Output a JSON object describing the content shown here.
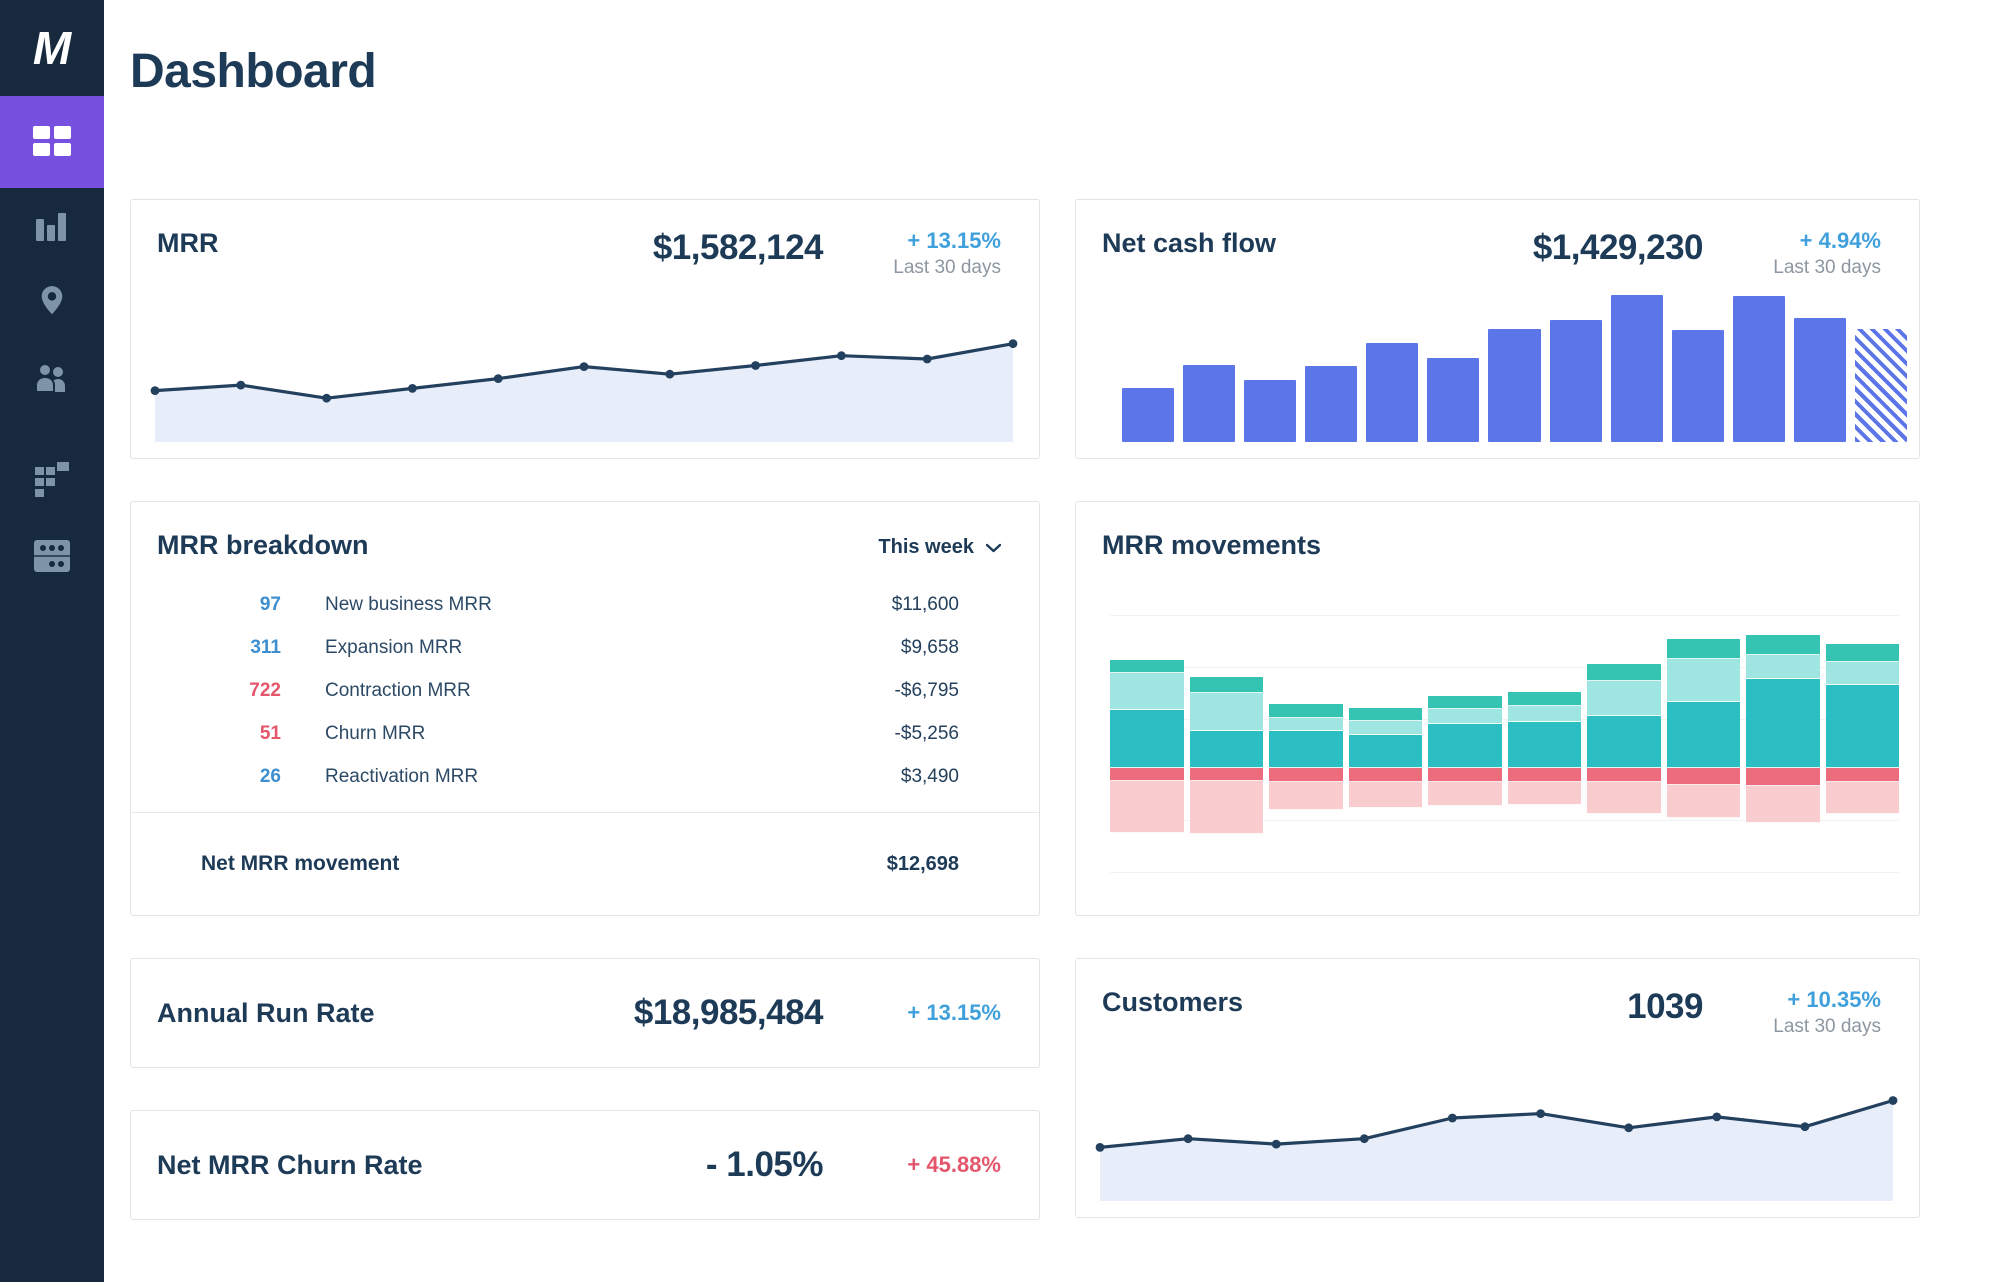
{
  "page": {
    "title": "Dashboard"
  },
  "sidebar": {
    "logo_text": "M",
    "items": [
      {
        "name": "dashboard",
        "icon": "grid-icon",
        "active": true
      },
      {
        "name": "charts",
        "icon": "bar-chart-icon",
        "active": false
      },
      {
        "name": "geo",
        "icon": "map-pin-icon",
        "active": false
      },
      {
        "name": "customers",
        "icon": "users-icon",
        "active": false
      },
      {
        "name": "segments",
        "icon": "blocks-icon",
        "active": false
      },
      {
        "name": "data",
        "icon": "data-table-icon",
        "active": false
      }
    ]
  },
  "cards": {
    "mrr": {
      "title": "MRR",
      "value": "$1,582,124",
      "delta": "+ 13.15%",
      "period": "Last 30 days"
    },
    "net_cash_flow": {
      "title": "Net cash flow",
      "value": "$1,429,230",
      "delta": "+ 4.94%",
      "period": "Last 30 days"
    },
    "mrr_breakdown": {
      "title": "MRR breakdown",
      "range_selector": "This week",
      "rows": [
        {
          "count": "97",
          "tone": "blue",
          "label": "New business MRR",
          "value": "$11,600"
        },
        {
          "count": "311",
          "tone": "blue",
          "label": "Expansion MRR",
          "value": "$9,658"
        },
        {
          "count": "722",
          "tone": "red",
          "label": "Contraction MRR",
          "value": "-$6,795"
        },
        {
          "count": "51",
          "tone": "red",
          "label": "Churn MRR",
          "value": "-$5,256"
        },
        {
          "count": "26",
          "tone": "blue",
          "label": "Reactivation MRR",
          "value": "$3,490"
        }
      ],
      "footer": {
        "label": "Net MRR movement",
        "value": "$12,698"
      }
    },
    "mrr_movements": {
      "title": "MRR movements"
    },
    "annual_run_rate": {
      "title": "Annual Run Rate",
      "value": "$18,985,484",
      "delta": "+ 13.15%"
    },
    "customers": {
      "title": "Customers",
      "value": "1039",
      "delta": "+ 10.35%",
      "period": "Last 30 days"
    },
    "net_mrr_churn": {
      "title": "Net MRR Churn Rate",
      "value": "- 1.05%",
      "delta": "+ 45.88%"
    }
  },
  "colors": {
    "accent_blue": "#3fa0dc",
    "negative_red": "#e4566b",
    "bar_blue": "#5c75e9",
    "line_navy": "#23405e",
    "area_fill": "#e7edf9",
    "sidebar_bg": "#16293d",
    "active_purple": "#7850e0"
  },
  "chart_data": [
    {
      "id": "mrr-trend",
      "type": "line",
      "values": [
        38,
        43,
        31,
        40,
        49,
        60,
        53,
        61,
        70,
        67,
        81
      ],
      "line_color": "#23405e",
      "fill_color": "#e7edf9",
      "grid": false,
      "legend": false
    },
    {
      "id": "net-cash-flow",
      "type": "bar",
      "values": [
        35,
        50,
        40,
        49,
        64,
        54,
        73,
        79,
        95,
        72,
        94,
        80,
        73
      ],
      "last_bar_hatched": true,
      "bar_color": "#5c75e9",
      "grid": false,
      "legend": false
    },
    {
      "id": "mrr-movements",
      "type": "stacked_bar",
      "zero_line_pct": 58,
      "gridlines_pct": [
        5,
        23,
        41,
        76,
        94
      ],
      "segments_positive": [
        {
          "name": "teal-cap",
          "color": "#35c4b2",
          "values": [
            4.5,
            5.5,
            4.7,
            4.2,
            4.5,
            5.1,
            5.8,
            7.0,
            7.0,
            6.4
          ]
        },
        {
          "name": "teal-light",
          "color": "#9fe6e2",
          "values": [
            13.0,
            13.0,
            4.5,
            5.0,
            5.0,
            5.4,
            12.2,
            14.7,
            8.3,
            7.7
          ]
        },
        {
          "name": "teal-main",
          "color": "#2bbfc4",
          "values": [
            20.0,
            13.0,
            13.0,
            11.5,
            15.4,
            16.0,
            18.0,
            23.0,
            30.8,
            29.0
          ]
        }
      ],
      "segments_negative": [
        {
          "name": "red-band",
          "color": "#ec6b7c",
          "values": [
            4.5,
            4.5,
            5.0,
            5.0,
            5.0,
            5.0,
            5.0,
            5.8,
            6.4,
            5.0
          ]
        },
        {
          "name": "pink-band",
          "color": "#f9ccd0",
          "values": [
            18.0,
            18.5,
            9.6,
            9.0,
            8.3,
            8.0,
            11.0,
            11.5,
            12.8,
            11.0
          ]
        }
      ],
      "legend": false
    },
    {
      "id": "customers-trend",
      "type": "line",
      "values": [
        40,
        48,
        43,
        48,
        67,
        71,
        58,
        68,
        59,
        83
      ],
      "line_color": "#23405e",
      "fill_color": "#e7edf9",
      "grid": false,
      "legend": false
    }
  ]
}
